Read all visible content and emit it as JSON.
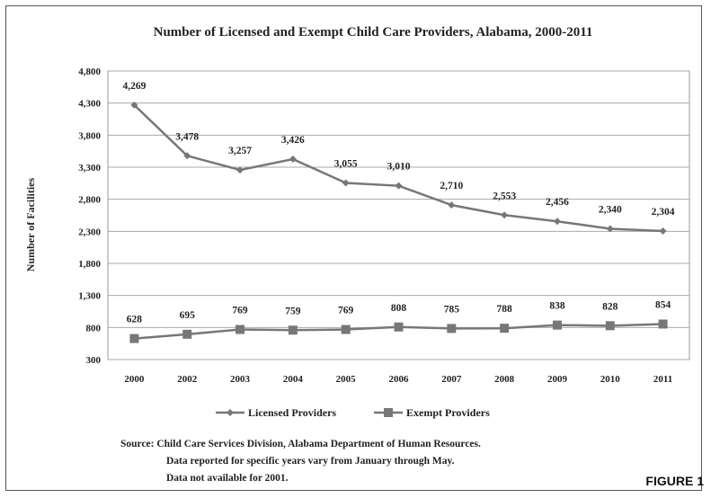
{
  "figure_label": "FIGURE 1",
  "source_lines": [
    "Source:  Child Care Services Division, Alabama Department of Human Resources.",
    "Data reported for specific years vary from January through May.",
    "Data not available for 2001."
  ],
  "colors": {
    "licensed": "#777777",
    "exempt": "#777777",
    "grid": "#aaaaaa"
  },
  "chart_data": {
    "type": "line",
    "title": "Number of Licensed and Exempt Child Care Providers, Alabama, 2000-2011",
    "ylabel": "Number of Facilities",
    "xlabel": "",
    "categories": [
      "2000",
      "2002",
      "2003",
      "2004",
      "2005",
      "2006",
      "2007",
      "2008",
      "2009",
      "2010",
      "2011"
    ],
    "yticks": [
      "4,800",
      "4,300",
      "3,800",
      "3,300",
      "2,800",
      "2,300",
      "1,800",
      "1,300",
      "800",
      "300"
    ],
    "ylim": [
      300,
      4800
    ],
    "grid": true,
    "legend_position": "bottom",
    "series": [
      {
        "name": "Licensed Providers",
        "marker": "diamond",
        "values": [
          4269,
          3478,
          3257,
          3426,
          3055,
          3010,
          2710,
          2553,
          2456,
          2340,
          2304
        ],
        "labels": [
          "4,269",
          "3,478",
          "3,257",
          "3,426",
          "3,055",
          "3,010",
          "2,710",
          "2,553",
          "2,456",
          "2,340",
          "2,304"
        ]
      },
      {
        "name": "Exempt Providers",
        "marker": "square",
        "values": [
          628,
          695,
          769,
          759,
          769,
          808,
          785,
          788,
          838,
          828,
          854
        ],
        "labels": [
          "628",
          "695",
          "769",
          "759",
          "769",
          "808",
          "785",
          "788",
          "838",
          "828",
          "854"
        ]
      }
    ]
  }
}
